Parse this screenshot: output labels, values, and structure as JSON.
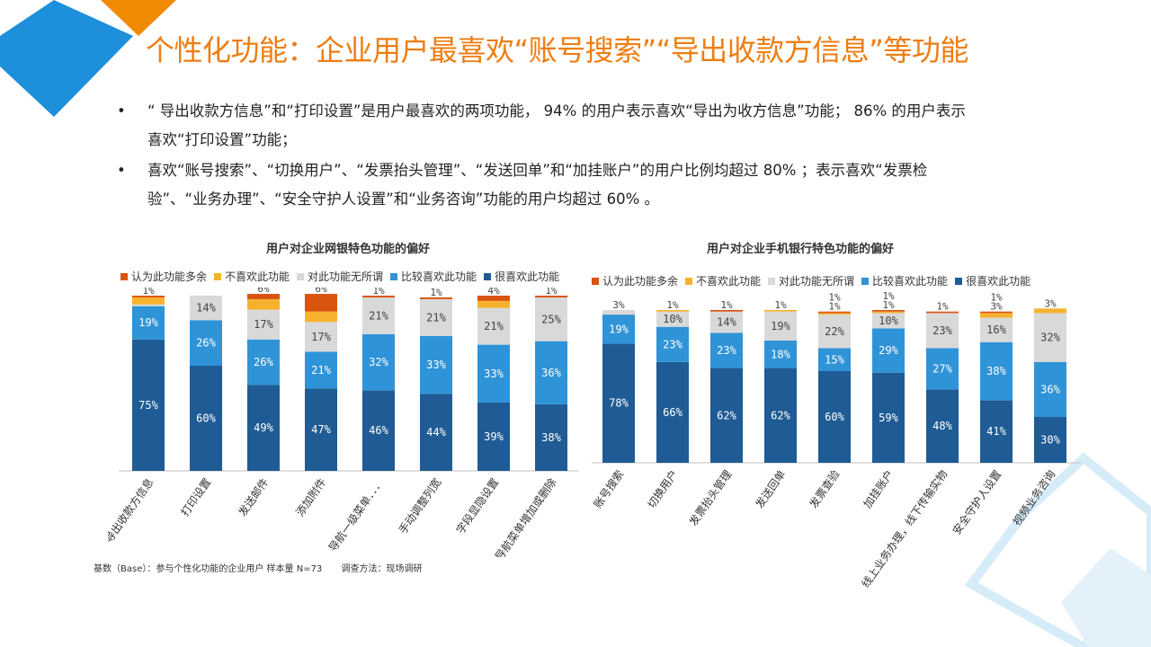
{
  "page": {
    "title": "个性化功能：企业用户最喜欢“账号搜索”“导出收款方信息”等功能",
    "bullets": [
      {
        "symbol": "•",
        "line1": "“ 导出收款方信息”和“打印设置”是用户最喜欢的两项功能， 94% 的用户表示喜欢“导出为收方信息”功能； 86% 的用户表示",
        "line2": "喜欢“打印设置”功能；"
      },
      {
        "symbol": "•",
        "line1": "喜欢“账号搜索”、“切换用户”、“发票抬头管理”、“发送回单”和“加挂账户”的用户比例均超过 80% ；表示喜欢“发票检",
        "line2": "验”、“业务办理”、“安全守护人设置”和“业务咨询”功能的用户均超过 60% 。"
      }
    ],
    "footnote": {
      "base": "基数（Base）：参与个性化功能的企业用户  样本量 N=73",
      "method": "调查方法：现场调研"
    }
  },
  "colors": {
    "accent": "#ee7d11",
    "deco_orange": "#f08a00",
    "deco_blue": "#1e8fdb",
    "deco_light_blue": "#d6ecf8",
    "axis": "#bfbfbf"
  },
  "chart_data": [
    {
      "type": "stacked-bar",
      "title": "用户对企业网银特色功能的偏好",
      "legend_position": "top",
      "categories": [
        "导出收款方信息",
        "打印设置",
        "发送邮件",
        "添加附件",
        "导航一级菜单．．．",
        "手动调整列宽",
        "字段显隐设置",
        "导航菜单增加或删除"
      ],
      "unit": "%",
      "series": [
        {
          "name": "很喜欢此功能",
          "color": "#1f5b94",
          "label_color": "#ffffff",
          "values": [
            75,
            60,
            49,
            47,
            46,
            44,
            39,
            38
          ]
        },
        {
          "name": "比较喜欢此功能",
          "color": "#2f93d7",
          "label_color": "#ffffff",
          "values": [
            19,
            26,
            26,
            21,
            32,
            33,
            33,
            36
          ]
        },
        {
          "name": "对此功能无所谓",
          "color": "#d9d9d9",
          "label_color": "#444444",
          "values": [
            1,
            14,
            17,
            17,
            21,
            21,
            21,
            25
          ]
        },
        {
          "name": "不喜欢此功能",
          "color": "#f6b22e",
          "label_color": "#444444",
          "values": [
            4,
            0,
            6,
            6,
            0,
            0,
            4,
            0
          ]
        },
        {
          "name": "认为此功能多余",
          "color": "#d9540f",
          "label_color": "#444444",
          "values": [
            1,
            0,
            3,
            10,
            1,
            1,
            3,
            1
          ]
        }
      ]
    },
    {
      "type": "stacked-bar",
      "title": "用户对企业手机银行特色功能的偏好",
      "legend_position": "top",
      "categories": [
        "账号搜索",
        "切换用户",
        "发票抬头管理",
        "发送回单",
        "发票查验",
        "加挂账户",
        "线上业务办理，线下传输实物",
        "安全守护人设置",
        "视频业务咨询"
      ],
      "unit": "%",
      "series": [
        {
          "name": "很喜欢此功能",
          "color": "#1f5b94",
          "label_color": "#ffffff",
          "values": [
            78,
            66,
            62,
            62,
            60,
            59,
            48,
            41,
            30
          ]
        },
        {
          "name": "比较喜欢此功能",
          "color": "#2f93d7",
          "label_color": "#ffffff",
          "values": [
            19,
            23,
            23,
            18,
            15,
            29,
            27,
            38,
            36
          ]
        },
        {
          "name": "对此功能无所谓",
          "color": "#d9d9d9",
          "label_color": "#444444",
          "values": [
            3,
            10,
            14,
            19,
            22,
            10,
            23,
            16,
            32
          ]
        },
        {
          "name": "不喜欢此功能",
          "color": "#f6b22e",
          "label_color": "#444444",
          "values": [
            0,
            1,
            0,
            1,
            1,
            1,
            0,
            3,
            3
          ]
        },
        {
          "name": "认为此功能多余",
          "color": "#d9540f",
          "label_color": "#444444",
          "values": [
            0,
            0,
            1,
            0,
            1,
            1,
            1,
            1,
            0
          ]
        }
      ]
    }
  ]
}
